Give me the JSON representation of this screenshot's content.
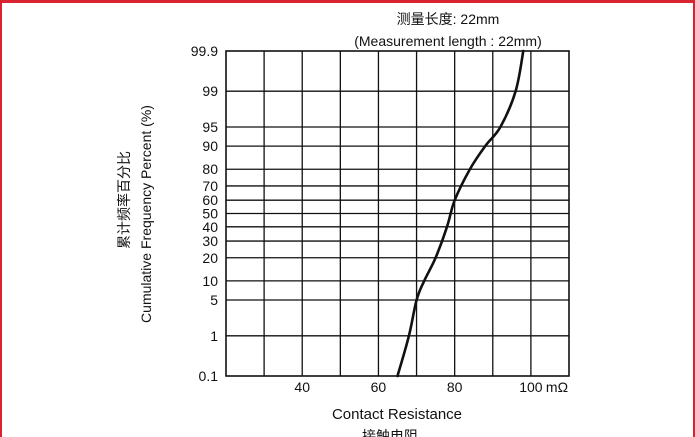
{
  "frame": {
    "accent_color": "#d9232e"
  },
  "chart_data": {
    "type": "line",
    "title": "测量长度:  22mm",
    "subtitle": "(Measurement length : 22mm)",
    "xlabel": "Contact Resistance",
    "xlabel_cn": "接触电阻",
    "x_unit": "mΩ",
    "ylabel": "Cumulative Frequency Percent (%)",
    "ylabel_cn": "累计频率百分比",
    "y_scale": "normal-probability",
    "xlim": [
      20,
      110
    ],
    "ylim": [
      0.1,
      99.9
    ],
    "x_ticks": [
      40,
      60,
      80,
      100
    ],
    "y_ticks": [
      0.1,
      1,
      5,
      10,
      20,
      30,
      40,
      50,
      60,
      70,
      80,
      90,
      95,
      99,
      99.9
    ],
    "grid": true,
    "series": [
      {
        "x": [
          65,
          68,
          70,
          72,
          75,
          78,
          80,
          84,
          88,
          92,
          96,
          98
        ],
        "y": [
          0.1,
          1,
          5,
          10,
          20,
          40,
          60,
          80,
          90,
          95,
          99,
          99.9
        ]
      }
    ]
  }
}
